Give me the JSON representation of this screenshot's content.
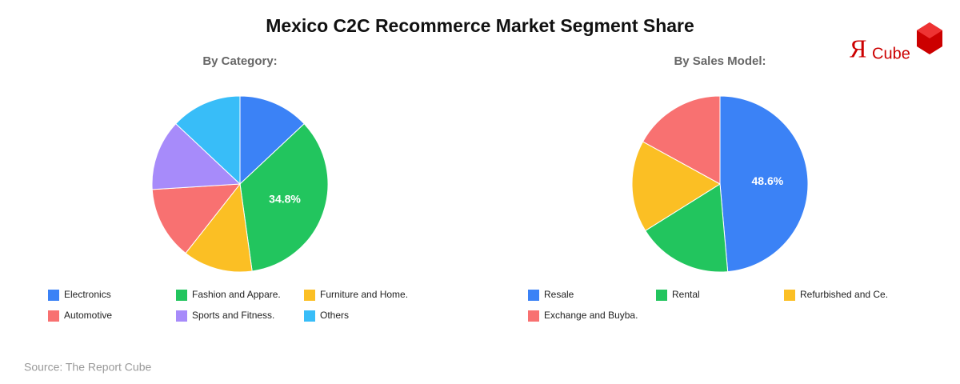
{
  "title": "Mexico C2C Recommerce Market Segment Share",
  "logo": {
    "mark": "Я",
    "text": "Cube"
  },
  "source": "Source: The Report Cube",
  "chart_data": [
    {
      "type": "pie",
      "subtitle": "By Category:",
      "categories": [
        "Electronics",
        "Fashion and Appare.",
        "Furniture and Home.",
        "Automotive",
        "Sports and Fitness.",
        "Others"
      ],
      "values": [
        13.0,
        34.8,
        12.8,
        13.4,
        13.0,
        13.0
      ],
      "value_labels": [
        null,
        "34.8%",
        null,
        null,
        null,
        null
      ],
      "colors": [
        "#3b82f6",
        "#22c55e",
        "#fbbf24",
        "#f87171",
        "#a78bfa",
        "#38bdf8"
      ]
    },
    {
      "type": "pie",
      "subtitle": "By Sales Model:",
      "categories": [
        "Resale",
        "Rental",
        "Refurbished and Ce.",
        "Exchange and Buyba."
      ],
      "values": [
        48.6,
        17.5,
        16.9,
        17.0
      ],
      "value_labels": [
        "48.6%",
        null,
        null,
        null
      ],
      "colors": [
        "#3b82f6",
        "#22c55e",
        "#fbbf24",
        "#f87171"
      ]
    }
  ]
}
